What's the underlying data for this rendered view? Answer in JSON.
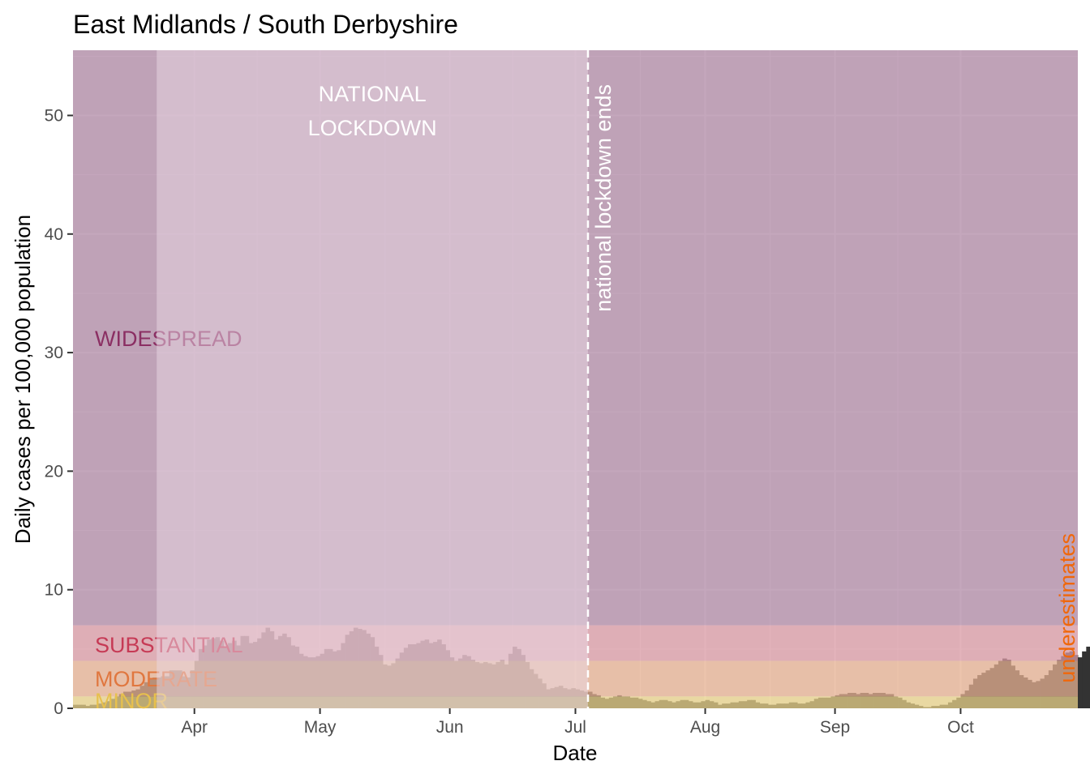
{
  "chart_data": {
    "type": "bar",
    "title": "East Midlands / South Derbyshire",
    "xlabel": "Date",
    "ylabel": "Daily cases per 100,000 population",
    "ylim": [
      0,
      55.5
    ],
    "y_ticks": [
      0,
      10,
      20,
      30,
      40,
      50
    ],
    "x_ticks": [
      {
        "date": "2020-04-01",
        "label": "Apr"
      },
      {
        "date": "2020-05-01",
        "label": "May"
      },
      {
        "date": "2020-06-01",
        "label": "Jun"
      },
      {
        "date": "2020-07-01",
        "label": "Jul"
      },
      {
        "date": "2020-08-01",
        "label": "Aug"
      },
      {
        "date": "2020-09-01",
        "label": "Sep"
      },
      {
        "date": "2020-10-01",
        "label": "Oct"
      }
    ],
    "x_range": [
      "2020-03-03",
      "2020-10-29"
    ],
    "grid": true,
    "bar_color": "#333333",
    "start_date": "2020-03-03",
    "values": [
      0.3,
      0.3,
      0.3,
      0.2,
      0.3,
      0.3,
      0.4,
      0.5,
      0.6,
      0.8,
      1.0,
      1.2,
      1.4,
      1.4,
      1.5,
      1.6,
      1.9,
      2.2,
      2.5,
      2.6,
      2.6,
      2.7,
      2.7,
      3.2,
      3.2,
      3.2,
      2.7,
      2.6,
      3.2,
      4.0,
      5.0,
      5.3,
      5.8,
      5.9,
      6.0,
      5.7,
      5.2,
      5.5,
      5.7,
      5.3,
      6.1,
      6.1,
      5.5,
      5.6,
      5.9,
      6.4,
      6.8,
      6.5,
      5.8,
      6.1,
      6.3,
      6.0,
      5.3,
      5.2,
      4.6,
      4.4,
      4.3,
      4.3,
      4.4,
      4.6,
      5.0,
      5.0,
      4.8,
      4.9,
      5.5,
      6.2,
      6.5,
      6.8,
      6.7,
      6.6,
      6.3,
      6.0,
      5.2,
      4.5,
      3.7,
      3.6,
      3.8,
      4.2,
      4.7,
      5.1,
      5.4,
      5.4,
      5.5,
      5.7,
      5.8,
      5.5,
      5.6,
      5.8,
      5.4,
      4.9,
      4.3,
      4.0,
      4.2,
      4.5,
      4.4,
      4.1,
      3.9,
      3.8,
      3.9,
      3.8,
      3.7,
      3.9,
      4.1,
      3.7,
      4.6,
      5.2,
      5.0,
      4.5,
      3.9,
      3.3,
      2.9,
      2.5,
      2.1,
      1.6,
      1.7,
      1.8,
      1.9,
      1.7,
      1.6,
      1.7,
      1.6,
      1.5,
      1.4,
      1.4,
      1.2,
      1.1,
      0.9,
      0.8,
      0.9,
      1.0,
      1.1,
      1.0,
      1.0,
      0.9,
      0.9,
      0.8,
      0.7,
      0.6,
      0.5,
      0.6,
      0.7,
      0.7,
      0.6,
      0.5,
      0.6,
      0.7,
      0.7,
      0.6,
      0.5,
      0.5,
      0.6,
      0.7,
      0.6,
      0.5,
      0.3,
      0.4,
      0.4,
      0.5,
      0.5,
      0.6,
      0.6,
      0.7,
      0.7,
      0.5,
      0.4,
      0.4,
      0.3,
      0.3,
      0.4,
      0.4,
      0.4,
      0.5,
      0.5,
      0.4,
      0.4,
      0.5,
      0.6,
      0.8,
      0.9,
      0.9,
      0.9,
      1.0,
      1.1,
      1.2,
      1.2,
      1.3,
      1.3,
      1.2,
      1.3,
      1.3,
      1.2,
      1.3,
      1.3,
      1.3,
      1.2,
      1.2,
      1.0,
      0.9,
      0.7,
      0.5,
      0.4,
      0.3,
      0.2,
      0.1,
      0.1,
      0.2,
      0.2,
      0.3,
      0.3,
      0.5,
      0.7,
      0.9,
      1.2,
      1.5,
      2.0,
      2.5,
      2.8,
      3.0,
      3.2,
      3.4,
      3.7,
      4.0,
      4.2,
      4.1,
      3.6,
      3.2,
      2.8,
      2.6,
      2.4,
      2.2,
      2.3,
      2.5,
      2.8,
      3.2,
      3.7,
      4.1,
      4.4,
      4.7,
      4.8,
      4.5,
      4.3,
      4.8,
      5.2,
      5.0,
      5.3,
      5.8,
      6.4,
      7.1,
      7.8,
      8.5,
      9.1,
      9.6,
      9.8,
      10.0,
      11.0,
      12.1,
      13.0,
      13.9,
      14.9,
      15.8,
      16.5,
      17.4,
      18.5,
      19.6,
      20.7,
      21.8,
      23.1,
      26.0,
      29.5,
      34.3,
      37.2,
      41.6,
      44.8,
      47.5,
      48.8,
      49.4,
      47.5,
      47.0,
      52.0,
      52.3,
      56.0,
      51.9,
      45.8,
      45.2,
      47.3,
      44.5
    ],
    "bands": [
      {
        "name": "WIDESPREAD",
        "from": 7,
        "to": 55.5,
        "color": "#b08aa6",
        "label_color": "#8b2f63"
      },
      {
        "name": "SUBSTANTIAL",
        "from": 4,
        "to": 7,
        "color": "#d99aa4",
        "label_color": "#c63a55"
      },
      {
        "name": "MODERATE",
        "from": 1,
        "to": 4,
        "color": "#e5b092",
        "label_color": "#e0773f"
      },
      {
        "name": "MINOR",
        "from": 0,
        "to": 1,
        "color": "#e8d18a",
        "label_color": "#e7c04d"
      }
    ],
    "lockdown": {
      "label_line1": "NATIONAL",
      "label_line2": "LOCKDOWN",
      "start": "2020-03-23",
      "end": "2020-07-04",
      "color": "#ead7e4"
    },
    "lockdown_end": {
      "date": "2020-07-04",
      "label": "national lockdown ends"
    },
    "underestimates": {
      "label": "underestimates",
      "color": "#f0670a"
    }
  }
}
